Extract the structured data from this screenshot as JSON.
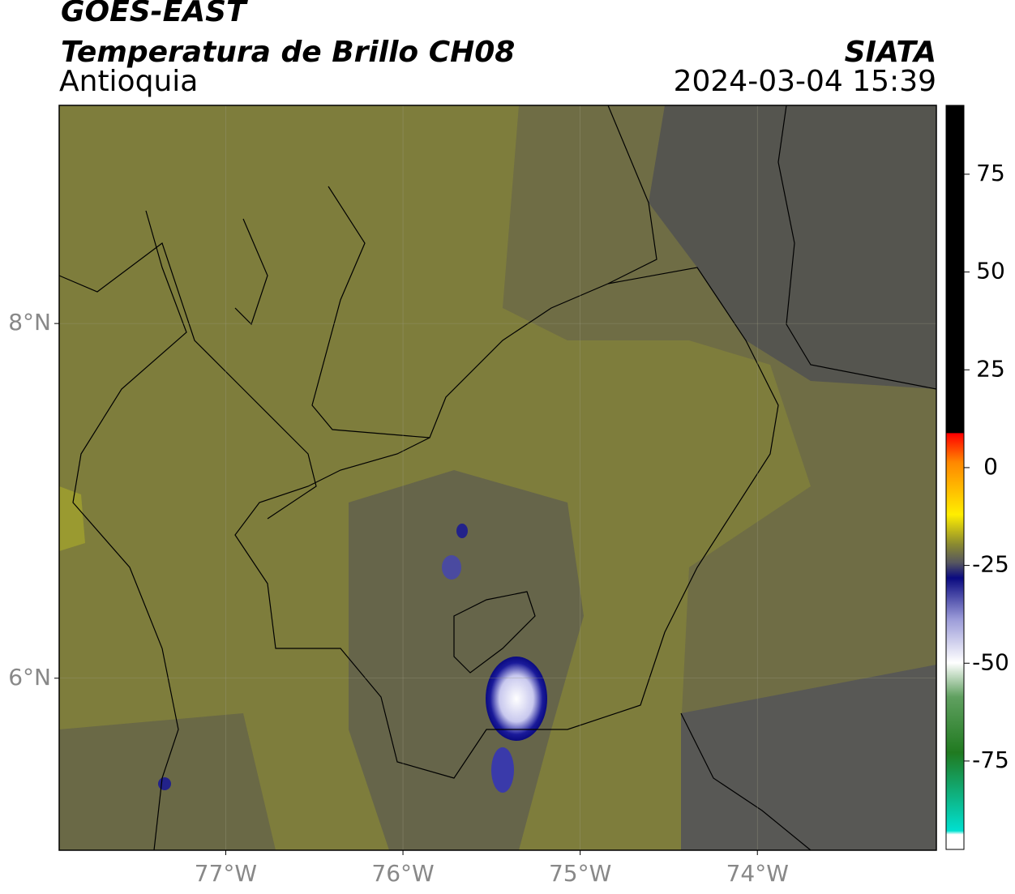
{
  "header": {
    "satellite": "GOES-EAST",
    "product": "Temperatura de Brillo CH08",
    "region": "Antioquia",
    "agency": "SIATA",
    "datetime": "2024-03-04 15:39"
  },
  "map": {
    "xlim": [
      -77.94,
      -72.99
    ],
    "ylim": [
      5.03,
      9.23
    ],
    "xticks": [
      {
        "value": -77,
        "label": "77°W"
      },
      {
        "value": -76,
        "label": "76°W"
      },
      {
        "value": -75,
        "label": "75°W"
      },
      {
        "value": -74,
        "label": "74°W"
      }
    ],
    "yticks": [
      {
        "value": 8,
        "label": "8°N"
      },
      {
        "value": 6,
        "label": "6°N"
      }
    ]
  },
  "colorbar": {
    "lim": [
      -97.6,
      92.6
    ],
    "ticks": [
      75,
      50,
      25,
      0,
      -25,
      -50,
      -75
    ]
  }
}
